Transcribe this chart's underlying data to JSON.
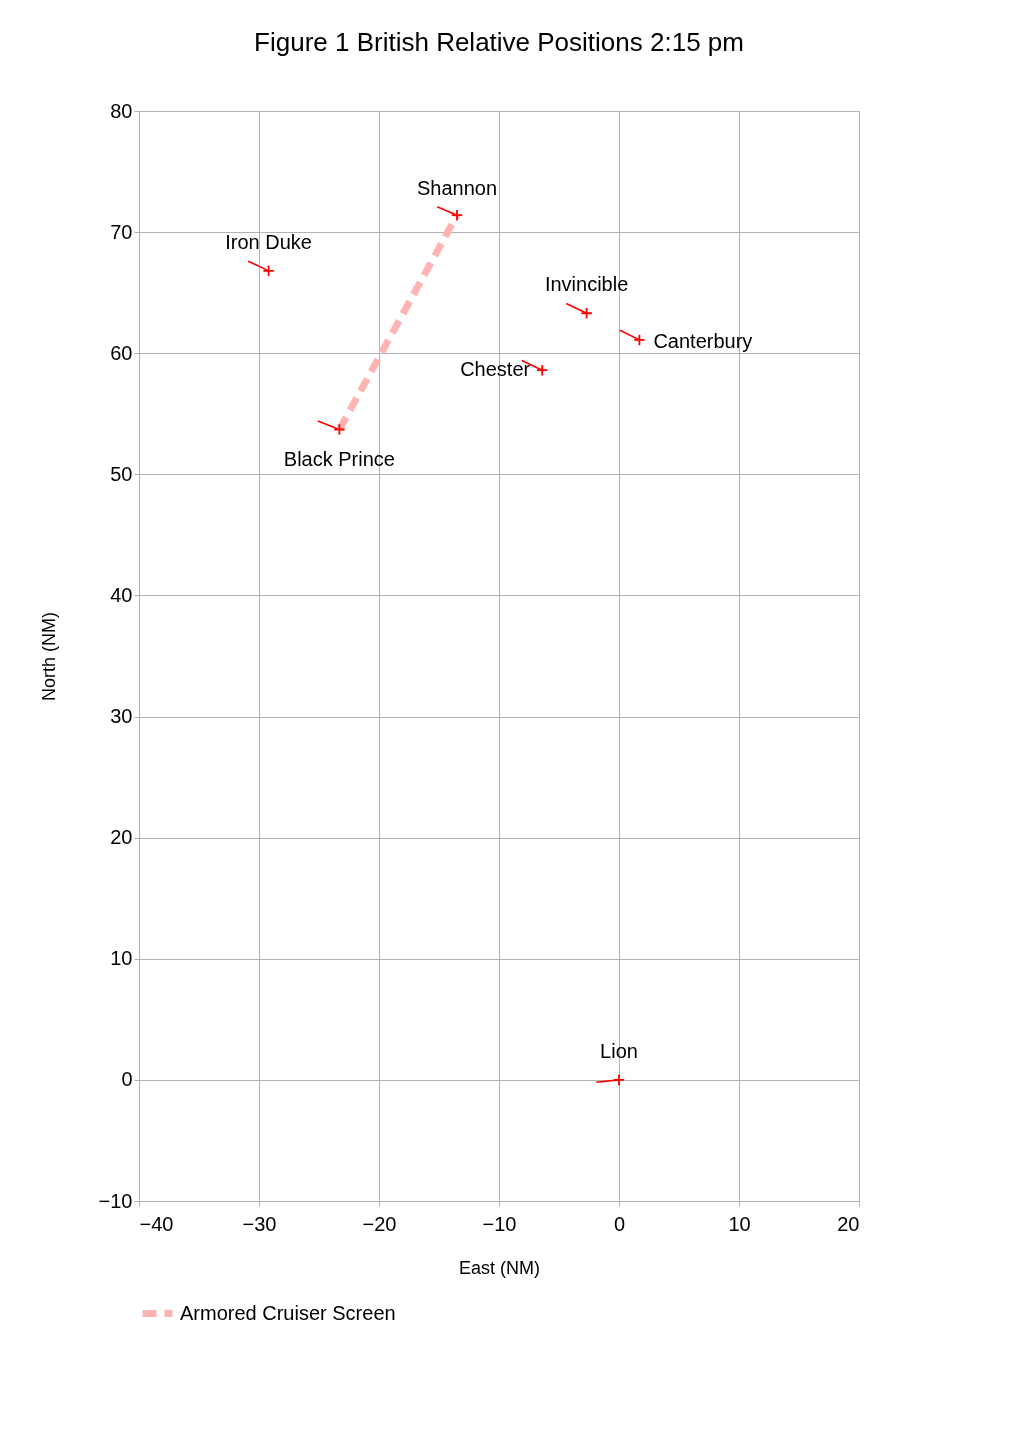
{
  "chart_data": {
    "type": "scatter",
    "title": "Figure 1 British Relative Positions 2:15 pm",
    "xlabel": "East (NM)",
    "ylabel": "North (NM)",
    "xlim": [
      -40,
      20
    ],
    "xticks": [
      -40,
      -30,
      -20,
      -10,
      0,
      10,
      20
    ],
    "ylim": [
      -10,
      80
    ],
    "yticks": [
      -10,
      0,
      10,
      20,
      30,
      40,
      50,
      60,
      70,
      80
    ],
    "grid": true,
    "legend": "bottom",
    "marker": "cross",
    "series": [
      {
        "color": "#ff0000",
        "x": [
          -13.5,
          -29.2,
          -2.7,
          1.7,
          -6.4,
          -23.3,
          0
        ],
        "values": [
          71.4,
          66.8,
          63.3,
          61.1,
          58.6,
          53.7,
          0
        ]
      },
      {
        "type": "line",
        "marker": "none",
        "color": "#ff0000",
        "x": [
          -15.15,
          -13.5,
          null,
          -30.9,
          -29.2,
          null,
          -4.4,
          -2.7,
          null,
          0.07,
          1.7,
          null,
          -8.1,
          -6.4,
          null,
          -25.1,
          -23.3,
          null,
          -1.9,
          0
        ],
        "values": [
          72.1,
          71.4,
          null,
          67.6,
          66.8,
          null,
          64.1,
          63.3,
          null,
          61.9,
          61.1,
          null,
          59.4,
          58.6,
          null,
          54.4,
          53.7,
          null,
          -0.2,
          0
        ]
      },
      {
        "type": "line",
        "name": "Armored Cruiser Screen",
        "color": "#ffb3b3",
        "marker": "none",
        "line_style": "dashed",
        "x": [
          -23.3,
          -13.5
        ],
        "values": [
          53.7,
          71.4
        ]
      }
    ],
    "annotations": [
      {
        "text": "Shannon",
        "x": -13.5,
        "y": 71.4
      },
      {
        "text": "Iron Duke",
        "x": -29.2,
        "y": 66.8
      },
      {
        "text": "Invincible",
        "x": -2.7,
        "y": 63.3
      },
      {
        "text": "Canterbury",
        "x": 1.7,
        "y": 61.1
      },
      {
        "text": "Chester",
        "x": -6.4,
        "y": 58.6
      },
      {
        "text": "Black Prince",
        "x": -23.3,
        "y": 53.7
      },
      {
        "text": "Lion",
        "x": 0,
        "y": 0
      }
    ]
  }
}
